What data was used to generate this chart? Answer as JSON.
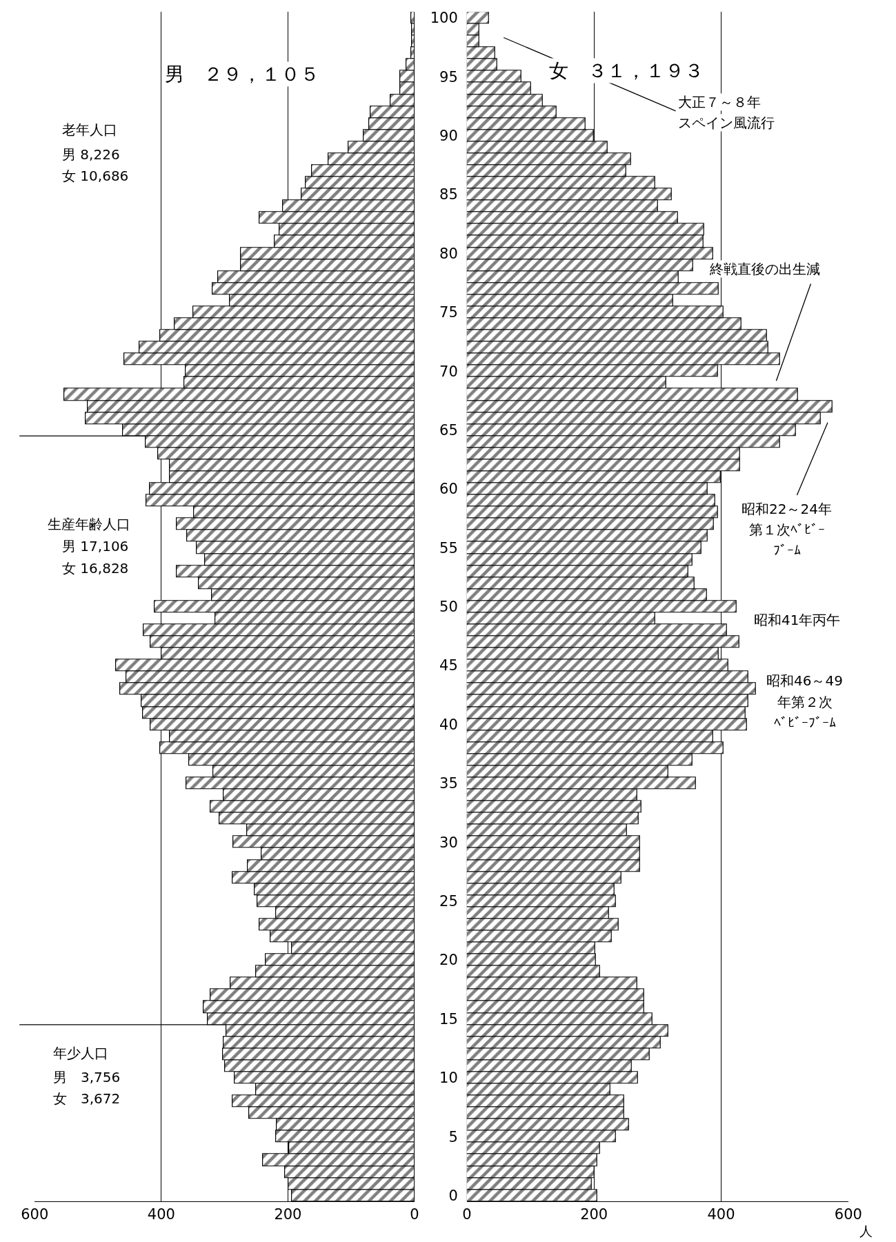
{
  "chart_data": [
    {
      "type": "bar",
      "orientation": "horizontal",
      "title": "男　２９，１０５",
      "color": "#000000",
      "x": [
        0,
        1,
        2,
        3,
        4,
        5,
        6,
        7,
        8,
        9,
        10,
        11,
        12,
        13,
        14,
        15,
        16,
        17,
        18,
        19,
        20,
        21,
        22,
        23,
        24,
        25,
        26,
        27,
        28,
        29,
        30,
        31,
        32,
        33,
        34,
        35,
        36,
        37,
        38,
        39,
        40,
        41,
        42,
        43,
        44,
        45,
        46,
        47,
        48,
        49,
        50,
        51,
        52,
        53,
        54,
        55,
        56,
        57,
        58,
        59,
        60,
        61,
        62,
        63,
        64,
        65,
        66,
        67,
        68,
        69,
        70,
        71,
        72,
        73,
        74,
        75,
        76,
        77,
        78,
        79,
        80,
        81,
        82,
        83,
        84,
        85,
        86,
        87,
        88,
        89,
        90,
        91,
        92,
        93,
        94,
        95,
        96,
        97,
        98,
        99,
        100
      ],
      "values": [
        194,
        199,
        205,
        239,
        198,
        219,
        218,
        261,
        287,
        250,
        284,
        299,
        303,
        302,
        297,
        327,
        333,
        322,
        291,
        250,
        235,
        194,
        228,
        245,
        219,
        248,
        252,
        287,
        263,
        242,
        286,
        265,
        308,
        322,
        302,
        360,
        318,
        356,
        402,
        387,
        417,
        429,
        431,
        465,
        455,
        471,
        400,
        417,
        428,
        315,
        410,
        320,
        341,
        376,
        331,
        344,
        359,
        376,
        348,
        424,
        418,
        387,
        387,
        405,
        425,
        461,
        519,
        516,
        553,
        364,
        361,
        458,
        434,
        402,
        379,
        350,
        292,
        319,
        310,
        274,
        274,
        221,
        213,
        245,
        208,
        178,
        172,
        162,
        136,
        104,
        80,
        72,
        70,
        38,
        23,
        23,
        13,
        5,
        4,
        4,
        5
      ],
      "xlim": [
        600,
        0
      ],
      "xticks": [
        600,
        400,
        200,
        0
      ],
      "ylim": [
        -0.5,
        100.5
      ],
      "yticks": [
        0,
        5,
        10,
        15,
        20,
        25,
        30,
        35,
        40,
        45,
        50,
        55,
        60,
        65,
        70,
        75,
        80,
        85,
        90,
        95,
        100
      ],
      "grid": "x",
      "tick_labels": "x",
      "ref_lines": [
        {
          "axis": "y",
          "value": 64.5
        },
        {
          "axis": "y",
          "value": 14.5
        }
      ],
      "annotations": [
        "老年人口",
        "男 8,226",
        "女 10,686",
        "生産年齢人口",
        "男 17,106",
        "女 16,828",
        "年少人口",
        "男　3,756",
        "女　3,672"
      ]
    },
    {
      "type": "bar",
      "orientation": "horizontal",
      "title": "女　３１，１９３",
      "xlabel": "人",
      "color": "#000000",
      "x": [
        0,
        1,
        2,
        3,
        4,
        5,
        6,
        7,
        8,
        9,
        10,
        11,
        12,
        13,
        14,
        15,
        16,
        17,
        18,
        19,
        20,
        21,
        22,
        23,
        24,
        25,
        26,
        27,
        28,
        29,
        30,
        31,
        32,
        33,
        34,
        35,
        36,
        37,
        38,
        39,
        40,
        41,
        42,
        43,
        44,
        45,
        46,
        47,
        48,
        49,
        50,
        51,
        52,
        53,
        54,
        55,
        56,
        57,
        58,
        59,
        60,
        61,
        62,
        63,
        64,
        65,
        66,
        67,
        68,
        69,
        70,
        71,
        72,
        73,
        74,
        75,
        76,
        77,
        78,
        79,
        80,
        81,
        82,
        83,
        84,
        85,
        86,
        87,
        88,
        89,
        90,
        91,
        92,
        93,
        94,
        95,
        96,
        97,
        98,
        99,
        100
      ],
      "values": [
        205,
        196,
        201,
        205,
        209,
        234,
        255,
        247,
        247,
        226,
        269,
        259,
        287,
        305,
        317,
        292,
        279,
        279,
        268,
        209,
        203,
        202,
        228,
        239,
        223,
        234,
        232,
        243,
        272,
        272,
        272,
        252,
        270,
        275,
        268,
        360,
        317,
        355,
        404,
        387,
        440,
        438,
        443,
        455,
        443,
        411,
        396,
        429,
        409,
        296,
        424,
        378,
        358,
        348,
        355,
        369,
        379,
        388,
        395,
        390,
        379,
        399,
        430,
        430,
        493,
        517,
        557,
        575,
        521,
        313,
        395,
        493,
        474,
        472,
        432,
        404,
        324,
        396,
        333,
        356,
        387,
        372,
        373,
        332,
        300,
        322,
        296,
        251,
        258,
        221,
        200,
        187,
        141,
        119,
        101,
        86,
        48,
        44,
        19,
        19,
        35
      ],
      "xlim": [
        0,
        600
      ],
      "xticks": [
        0,
        200,
        400,
        600
      ],
      "ylim": [
        -0.5,
        100.5
      ],
      "yticks": [
        0,
        5,
        10,
        15,
        20,
        25,
        30,
        35,
        40,
        45,
        50,
        55,
        60,
        65,
        70,
        75,
        80,
        85,
        90,
        95,
        100
      ],
      "grid": "x",
      "annotations": [
        "大正７～８年",
        "スペイン風流行",
        "終戦直後の出生減",
        "昭和22～24年",
        "第１次ﾍﾞﾋﾞｰ",
        "ﾌﾞｰﾑ",
        "昭和41年丙午",
        "昭和46～49",
        "年第２次",
        "ﾍﾞﾋﾞｰﾌﾞｰﾑ"
      ]
    }
  ]
}
